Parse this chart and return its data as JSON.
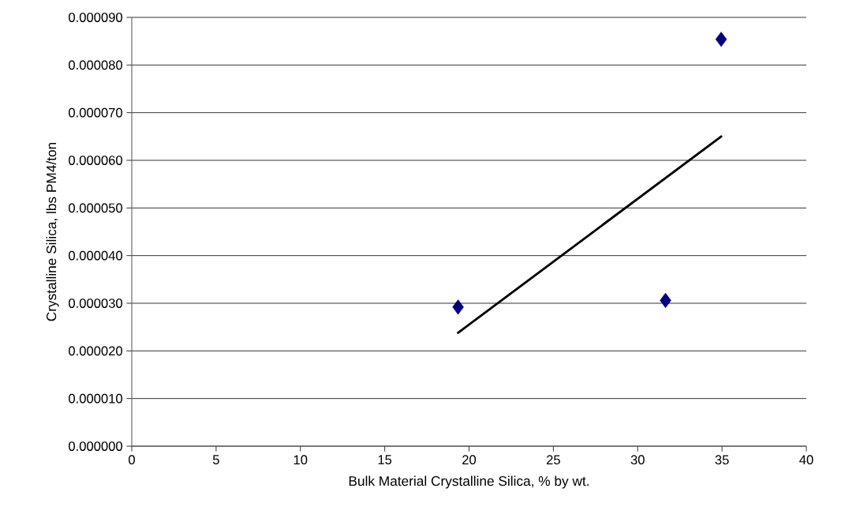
{
  "chart_data": {
    "type": "scatter",
    "xlabel": "Bulk Material Crystalline Silica, % by wt.",
    "ylabel": "Crystalline Silica, lbs PM4/ton",
    "series": [
      {
        "color": "#000080",
        "marker": "diamond",
        "x": [
          19.35,
          31.65,
          34.95
        ],
        "values": [
          2.92e-05,
          3.06e-05,
          8.54e-05
        ]
      },
      {
        "type": "line",
        "color": "#000000",
        "marker": "none",
        "line_style": "solid",
        "x": [
          19.35,
          34.95
        ],
        "values": [
          2.38e-05,
          6.5e-05
        ]
      }
    ],
    "xlim": [
      0,
      40
    ],
    "xticks": [
      0,
      5,
      10,
      15,
      20,
      25,
      30,
      35,
      40
    ],
    "ylim": [
      0,
      9e-05
    ],
    "yticks": [
      {
        "value": 0,
        "label": "0.000000"
      },
      {
        "value": 1e-05,
        "label": "0.000010"
      },
      {
        "value": 2e-05,
        "label": "0.000020"
      },
      {
        "value": 3e-05,
        "label": "0.000030"
      },
      {
        "value": 4e-05,
        "label": "0.000040"
      },
      {
        "value": 5e-05,
        "label": "0.000050"
      },
      {
        "value": 6e-05,
        "label": "0.000060"
      },
      {
        "value": 7e-05,
        "label": "0.000070"
      },
      {
        "value": 8e-05,
        "label": "0.000080"
      },
      {
        "value": 9e-05,
        "label": "0.000090"
      }
    ],
    "grid": "y"
  }
}
